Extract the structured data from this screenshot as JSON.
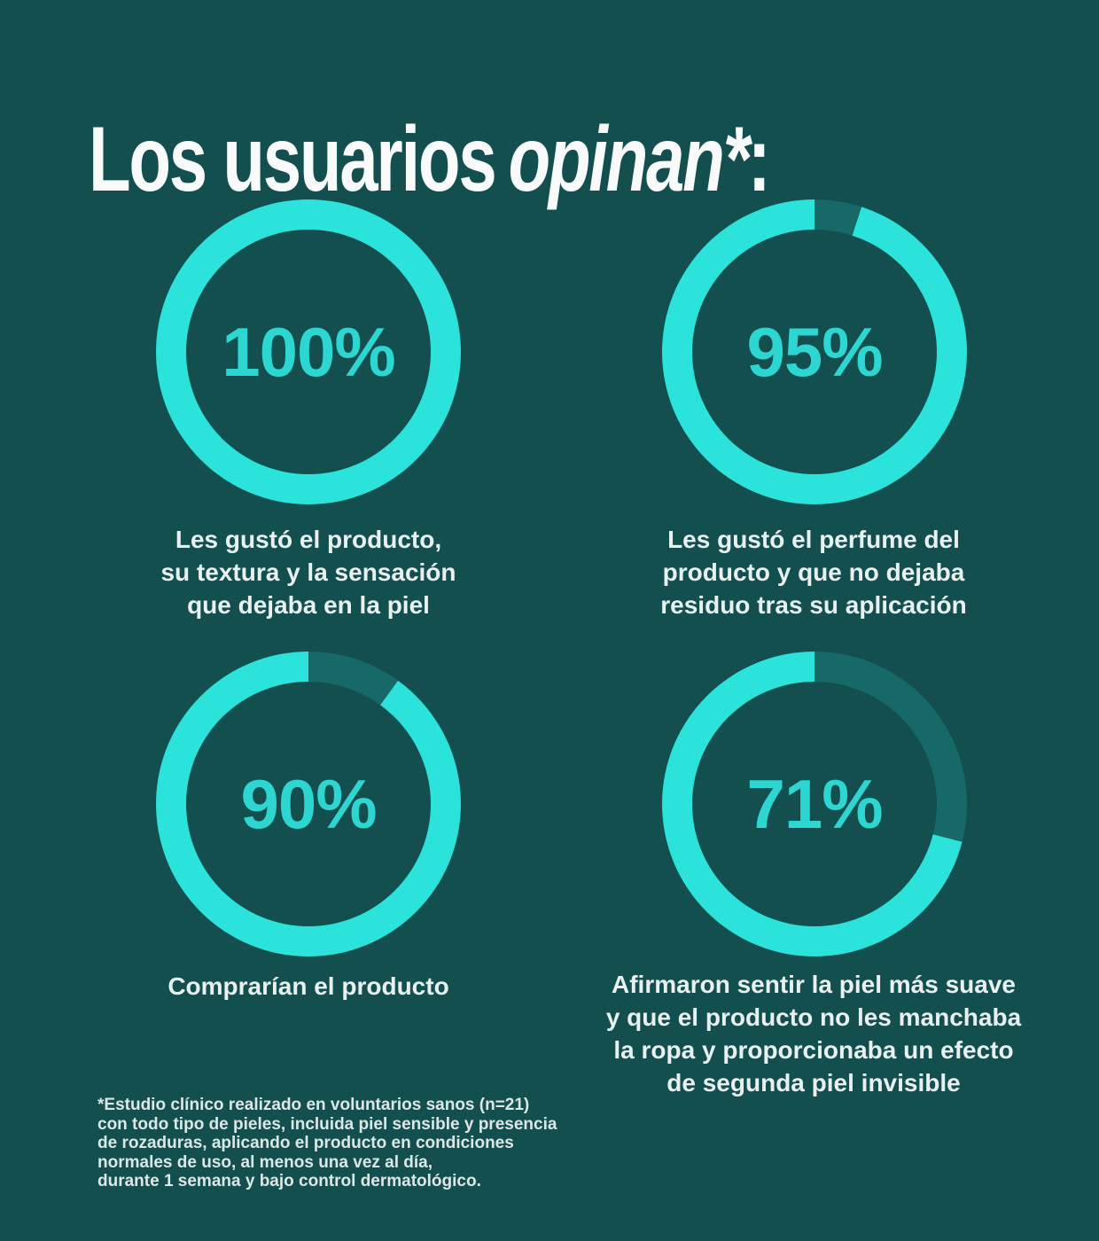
{
  "colors": {
    "background": "#124F4E",
    "ring_fill": "#2BE3DB",
    "ring_track": "#176968",
    "number_text": "#2DD6D0",
    "title_text": "#F8FBFA",
    "caption_text": "#E9F1F0"
  },
  "title": {
    "prefix": "Los usuarios",
    "italic": "opinan*",
    "suffix": ":"
  },
  "stats": [
    {
      "value": "100%",
      "percent": 100,
      "caption": "Les gustó el producto,\nsu textura y la sensación\nque dejaba en la piel"
    },
    {
      "value": "95%",
      "percent": 95,
      "caption": "Les gustó el perfume del\nproducto y que no dejaba\nresiduo tras su aplicación"
    },
    {
      "value": "90%",
      "percent": 90,
      "caption": "Comprarían el producto"
    },
    {
      "value": "71%",
      "percent": 71,
      "caption": "Afirmaron sentir la piel más suave\ny que el producto no les manchaba\nla ropa y proporcionaba un efecto\nde segunda piel invisible"
    }
  ],
  "footnote": "*Estudio clínico realizado en voluntarios sanos (n=21)\ncon todo tipo de pieles, incluida piel sensible y presencia\nde rozaduras, aplicando el producto en condiciones\nnormales de uso, al menos una vez al día,\ndurante 1 semana y bajo control dermatológico.",
  "chart_data": {
    "type": "pie",
    "subtype": "donut-grid-2x2",
    "title": "Los usuarios opinan*:",
    "units": "%",
    "series": [
      {
        "name": "Les gustó el producto, su textura y la sensación que dejaba en la piel",
        "value": 100
      },
      {
        "name": "Les gustó el perfume del producto y que no dejaba residuo tras su aplicación",
        "value": 95
      },
      {
        "name": "Comprarían el producto",
        "value": 90
      },
      {
        "name": "Afirmaron sentir la piel más suave y que el producto no les manchaba la ropa y proporcionaba un efecto de segunda piel invisible",
        "value": 71
      }
    ],
    "note": "*Estudio clínico realizado en voluntarios sanos (n=21) con todo tipo de pieles, incluida piel sensible y presencia de rozaduras, aplicando el producto en condiciones normales de uso, al menos una vez al día, durante 1 semana y bajo control dermatológico.",
    "layout": "2x2 grid of donut rings; unfilled remainder drawn as darker teal arc starting at 12 o'clock going clockwise; value label centered inside each ring"
  }
}
